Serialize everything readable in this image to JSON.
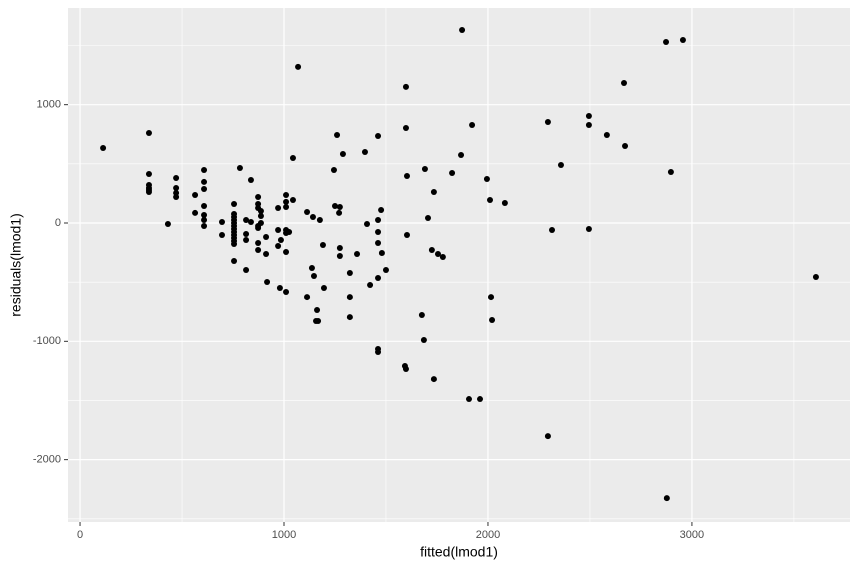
{
  "chart_data": {
    "type": "scatter",
    "xlabel": "fitted(lmod1)",
    "ylabel": "residuals(lmod1)",
    "color": "#000000",
    "grid": true,
    "xlim": [
      -59,
      3775
    ],
    "ylim": [
      -2527,
      1817
    ],
    "xticks": [
      0,
      1000,
      2000,
      3000
    ],
    "yticks": [
      -2000,
      -1000,
      0,
      1000
    ],
    "x": [
      113,
      338,
      338,
      338,
      338,
      338,
      338,
      431,
      471,
      471,
      471,
      471,
      564,
      564,
      608,
      608,
      608,
      608,
      608,
      608,
      608,
      696,
      696,
      755,
      755,
      755,
      755,
      755,
      755,
      755,
      755,
      755,
      755,
      755,
      755,
      755,
      784,
      814,
      814,
      814,
      814,
      838,
      838,
      873,
      873,
      873,
      873,
      873,
      873,
      873,
      887,
      887,
      887,
      912,
      912,
      917,
      971,
      971,
      971,
      980,
      985,
      1010,
      1010,
      1010,
      1010,
      1010,
      1010,
      1010,
      1025,
      1044,
      1044,
      1069,
      1113,
      1113,
      1137,
      1142,
      1147,
      1157,
      1167,
      1162,
      1176,
      1191,
      1196,
      1245,
      1250,
      1260,
      1270,
      1274,
      1274,
      1274,
      1289,
      1323,
      1323,
      1323,
      1358,
      1397,
      1407,
      1422,
      1461,
      1461,
      1461,
      1461,
      1461,
      1461,
      1461,
      1476,
      1480,
      1500,
      1598,
      1598,
      1603,
      1603,
      1593,
      1598,
      1676,
      1686,
      1691,
      1706,
      1725,
      1735,
      1735,
      1755,
      1779,
      1824,
      1868,
      1873,
      1907,
      1922,
      1961,
      1995,
      2010,
      2015,
      2020,
      2083,
      2294,
      2294,
      2314,
      2358,
      2495,
      2495,
      2495,
      2583,
      2667,
      2672,
      2873,
      2877,
      2897,
      2956,
      3608
    ],
    "values": [
      634,
      761,
      414,
      321,
      296,
      279,
      262,
      -8,
      380,
      296,
      254,
      220,
      237,
      85,
      448,
      347,
      287,
      144,
      68,
      25,
      -25,
      8,
      -101,
      161,
      76,
      51,
      25,
      0,
      -25,
      -51,
      -76,
      -101,
      -127,
      -152,
      -178,
      -321,
      465,
      25,
      -93,
      -144,
      -397,
      363,
      8,
      220,
      161,
      127,
      -25,
      -42,
      -169,
      -228,
      101,
      59,
      0,
      -118,
      -262,
      -499,
      127,
      -59,
      -194,
      -549,
      -144,
      237,
      178,
      135,
      -59,
      -85,
      -245,
      -583,
      -76,
      194,
      549,
      1319,
      93,
      -626,
      -380,
      51,
      -448,
      -828,
      -828,
      -735,
      25,
      -186,
      -549,
      448,
      144,
      744,
      85,
      135,
      -211,
      -279,
      583,
      -423,
      -626,
      -795,
      -262,
      600,
      -8,
      -524,
      735,
      25,
      -76,
      -169,
      -465,
      -1065,
      -1090,
      110,
      -254,
      -397,
      1150,
      803,
      397,
      -101,
      -1209,
      -1234,
      -778,
      -989,
      456,
      42,
      -228,
      -1319,
      262,
      -262,
      -287,
      423,
      575,
      1631,
      -1488,
      828,
      -1488,
      372,
      194,
      -626,
      -820,
      169,
      854,
      -1801,
      -59,
      490,
      904,
      828,
      -51,
      744,
      1183,
      651,
      1530,
      -2325,
      431,
      1547,
      -456
    ]
  }
}
